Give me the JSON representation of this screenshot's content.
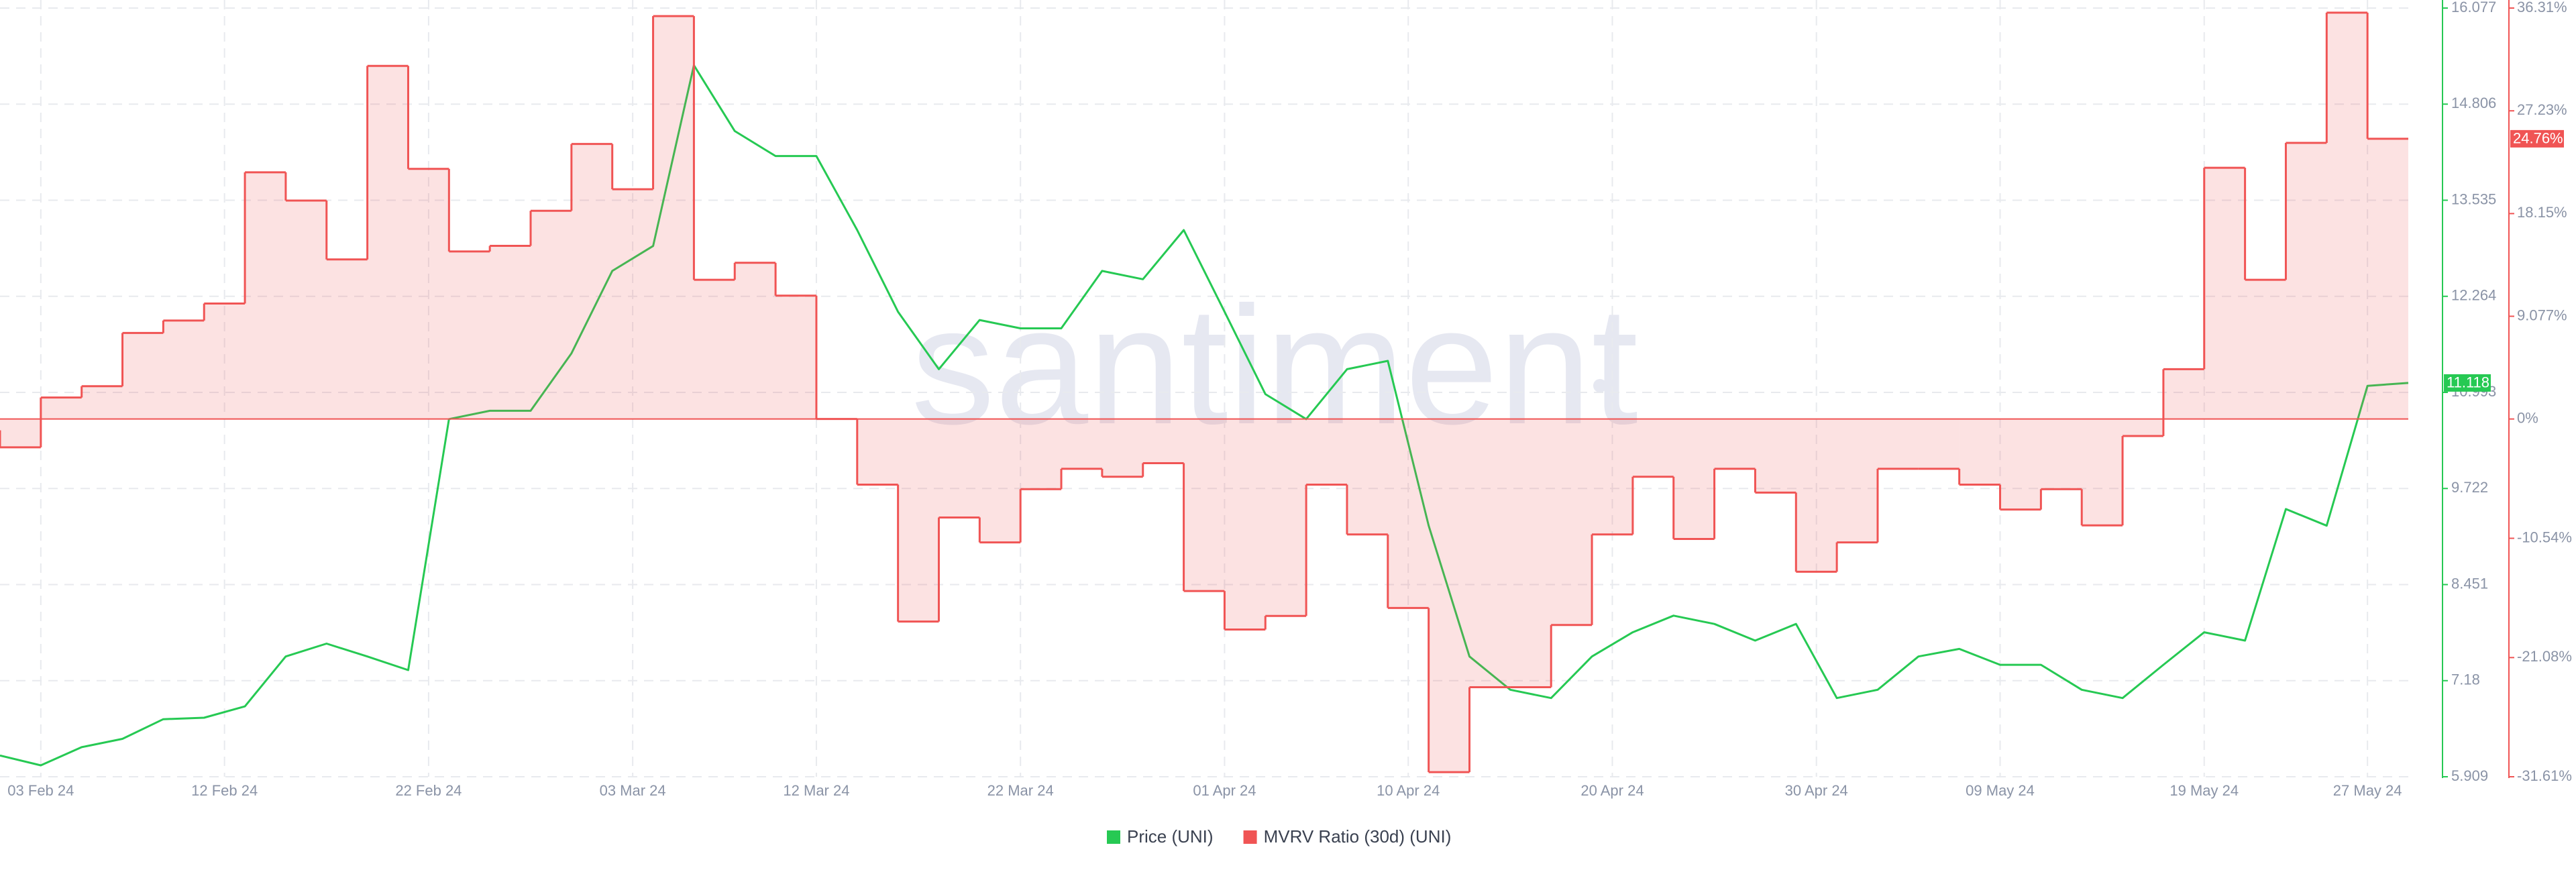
{
  "chart_data": {
    "type": "line",
    "watermark": "santiment",
    "x": [
      "2024-02-01",
      "2024-02-03",
      "2024-02-05",
      "2024-02-07",
      "2024-02-09",
      "2024-02-11",
      "2024-02-13",
      "2024-02-15",
      "2024-02-17",
      "2024-02-19",
      "2024-02-21",
      "2024-02-23",
      "2024-02-25",
      "2024-02-27",
      "2024-02-29",
      "2024-03-02",
      "2024-03-04",
      "2024-03-06",
      "2024-03-08",
      "2024-03-10",
      "2024-03-12",
      "2024-03-14",
      "2024-03-16",
      "2024-03-18",
      "2024-03-20",
      "2024-03-22",
      "2024-03-24",
      "2024-03-26",
      "2024-03-28",
      "2024-03-30",
      "2024-04-01",
      "2024-04-03",
      "2024-04-05",
      "2024-04-07",
      "2024-04-09",
      "2024-04-11",
      "2024-04-13",
      "2024-04-15",
      "2024-04-17",
      "2024-04-19",
      "2024-04-21",
      "2024-04-23",
      "2024-04-25",
      "2024-04-27",
      "2024-04-29",
      "2024-05-01",
      "2024-05-03",
      "2024-05-05",
      "2024-05-07",
      "2024-05-09",
      "2024-05-11",
      "2024-05-13",
      "2024-05-15",
      "2024-05-17",
      "2024-05-19",
      "2024-05-21",
      "2024-05-23",
      "2024-05-25",
      "2024-05-27",
      "2024-05-29"
    ],
    "xlim": [
      "2024-02-01",
      "2024-05-29"
    ],
    "xticks": [
      {
        "value": "2024-02-03",
        "label": "03 Feb 24"
      },
      {
        "value": "2024-02-12",
        "label": "12 Feb 24"
      },
      {
        "value": "2024-02-22",
        "label": "22 Feb 24"
      },
      {
        "value": "2024-03-03",
        "label": "03 Mar 24"
      },
      {
        "value": "2024-03-12",
        "label": "12 Mar 24"
      },
      {
        "value": "2024-03-22",
        "label": "22 Mar 24"
      },
      {
        "value": "2024-04-01",
        "label": "01 Apr 24"
      },
      {
        "value": "2024-04-10",
        "label": "10 Apr 24"
      },
      {
        "value": "2024-04-20",
        "label": "20 Apr 24"
      },
      {
        "value": "2024-04-30",
        "label": "30 Apr 24"
      },
      {
        "value": "2024-05-09",
        "label": "09 May 24"
      },
      {
        "value": "2024-05-19",
        "label": "19 May 24"
      },
      {
        "value": "2024-05-27",
        "label": "27 May 24"
      }
    ],
    "ylim": [
      5.909,
      16.077
    ],
    "yticks": [
      5.909,
      7.18,
      8.451,
      9.722,
      10.993,
      12.264,
      13.535,
      14.806,
      16.077
    ],
    "y2lim": [
      -31.61,
      36.31
    ],
    "y2ticks": [
      {
        "value": -31.61,
        "label": "-31.61%"
      },
      {
        "value": -21.08,
        "label": "-21.08%"
      },
      {
        "value": -10.54,
        "label": "-10.54%"
      },
      {
        "value": 0,
        "label": "0%"
      },
      {
        "value": 9.077,
        "label": "9.077%"
      },
      {
        "value": 18.15,
        "label": "18.15%"
      },
      {
        "value": 27.23,
        "label": "27.23%"
      },
      {
        "value": 36.31,
        "label": "36.31%"
      }
    ],
    "grid": true,
    "legend": "bottom",
    "series": [
      {
        "name": "Price (UNI)",
        "color": "#26c953",
        "values": [
          6.19,
          6.06,
          6.3,
          6.41,
          6.67,
          6.69,
          6.84,
          7.5,
          7.67,
          7.5,
          7.32,
          10.64,
          10.75,
          10.75,
          11.51,
          12.6,
          12.93,
          15.32,
          14.45,
          14.12,
          14.12,
          13.14,
          12.06,
          11.3,
          11.95,
          11.84,
          11.84,
          12.6,
          12.49,
          13.14,
          12.06,
          10.97,
          10.64,
          11.3,
          11.41,
          9.23,
          7.5,
          7.06,
          6.95,
          7.5,
          7.82,
          8.04,
          7.93,
          7.71,
          7.93,
          6.95,
          7.06,
          7.5,
          7.6,
          7.39,
          7.39,
          7.06,
          6.95,
          7.39,
          7.82,
          7.71,
          9.45,
          9.23,
          11.08,
          11.118
        ]
      },
      {
        "name": "MVRV Ratio (30d) (UNI)",
        "color": "#f05454",
        "axis": "y2",
        "step": true,
        "values": [
          -1.0,
          -2.5,
          1.9,
          2.9,
          7.6,
          8.7,
          10.2,
          21.8,
          19.3,
          14.1,
          31.2,
          22.1,
          14.8,
          15.3,
          18.4,
          24.3,
          20.3,
          35.6,
          12.3,
          13.8,
          10.9,
          0,
          -5.8,
          -17.9,
          -8.7,
          -10.9,
          -6.2,
          -4.4,
          -5.1,
          -3.9,
          -15.2,
          -18.6,
          -17.4,
          -5.8,
          -10.2,
          -16.7,
          -31.2,
          -23.7,
          -23.7,
          -18.2,
          -10.2,
          -5.1,
          -10.6,
          -4.4,
          -6.5,
          -13.5,
          -10.9,
          -4.4,
          -4.4,
          -5.8,
          -8.0,
          -6.2,
          -9.4,
          -1.5,
          4.4,
          22.2,
          12.3,
          24.4,
          35.9,
          24.76
        ],
        "value_labels": [
          null,
          null,
          null,
          null,
          null,
          null,
          null,
          null,
          null,
          null,
          null,
          null,
          null,
          null,
          null,
          null,
          null,
          null,
          null,
          null,
          null,
          null,
          null,
          null,
          null,
          null,
          null,
          null,
          null,
          null,
          null,
          null,
          null,
          null,
          null,
          null,
          null,
          null,
          null,
          null,
          null,
          null,
          null,
          null,
          null,
          null,
          null,
          null,
          null,
          null,
          null,
          null,
          null,
          null,
          null,
          null,
          null,
          null,
          null,
          "24.76%"
        ]
      }
    ]
  }
}
